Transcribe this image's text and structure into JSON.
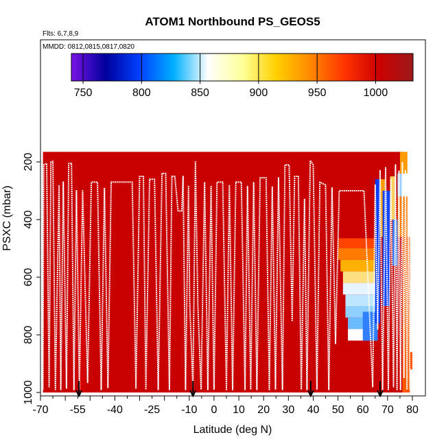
{
  "chart_data": {
    "type": "heatmap",
    "title": "ATOM1 Northbound PS_GEOS5",
    "annotation_flights": "Flts: 6,7,8,9",
    "annotation_dates": "MMDD: 0812,0815,0817,0820",
    "xlabel": "Latitude (deg N)",
    "ylabel": "PSXC (mbar)",
    "xlim": [
      -70,
      82
    ],
    "ylim": [
      1000,
      100
    ],
    "xticks": [
      -70,
      -60,
      -50,
      -40,
      -30,
      -20,
      -10,
      0,
      10,
      20,
      30,
      40,
      50,
      60,
      70,
      80
    ],
    "xtick_labels": [
      "-70",
      "-55",
      "-40",
      "-25",
      "-10",
      "0",
      "10",
      "20",
      "30",
      "40",
      "50",
      "60",
      "70",
      "80"
    ],
    "xtick_label_values": [
      -70,
      -55,
      -40,
      -25,
      -10,
      0,
      10,
      20,
      30,
      40,
      50,
      60,
      70,
      80
    ],
    "yticks": [
      200,
      400,
      600,
      800,
      1000
    ],
    "ytick_labels": [
      "200",
      "400",
      "600",
      "800",
      "1000"
    ],
    "colorbar": {
      "range": [
        740,
        1032
      ],
      "tick_values": [
        750,
        800,
        850,
        900,
        950,
        1000
      ],
      "tick_labels": [
        "750",
        "800",
        "850",
        "900",
        "950",
        "1000"
      ],
      "colors": [
        "#7a14e6",
        "#00009c",
        "#0040ff",
        "#00b0ff",
        "#ffffff",
        "#ffff9a",
        "#ffd000",
        "#ff8800",
        "#ff3300",
        "#cc0000",
        "#9c1a1a"
      ]
    },
    "background_field": {
      "lat_range": [
        -69,
        76
      ],
      "p_range": [
        165,
        1000
      ],
      "color": "#c80000"
    },
    "anomaly_cells": [
      {
        "lat_range": [
          50,
          66
        ],
        "p_range": [
          465,
          500
        ],
        "color": "#ff4400"
      },
      {
        "lat_range": [
          50,
          66
        ],
        "p_range": [
          500,
          540
        ],
        "color": "#ff7a00"
      },
      {
        "lat_range": [
          51,
          66
        ],
        "p_range": [
          540,
          580
        ],
        "color": "#ffb000"
      },
      {
        "lat_range": [
          52,
          66
        ],
        "p_range": [
          580,
          620
        ],
        "color": "#ffe080"
      },
      {
        "lat_range": [
          52,
          66
        ],
        "p_range": [
          620,
          660
        ],
        "color": "#e8f4ff"
      },
      {
        "lat_range": [
          53,
          66
        ],
        "p_range": [
          660,
          700
        ],
        "color": "#bfe6ff"
      },
      {
        "lat_range": [
          53,
          66
        ],
        "p_range": [
          700,
          740
        ],
        "color": "#8fd0ff"
      },
      {
        "lat_range": [
          54,
          66
        ],
        "p_range": [
          740,
          780
        ],
        "color": "#6bbcff"
      },
      {
        "lat_range": [
          54,
          66
        ],
        "p_range": [
          780,
          820
        ],
        "color": "#ffffff"
      },
      {
        "lat_range": [
          60,
          66
        ],
        "p_range": [
          720,
          820
        ],
        "color": "#2f7fff"
      },
      {
        "lat_range": [
          65,
          67
        ],
        "p_range": [
          260,
          760
        ],
        "color": "#0a3cff"
      },
      {
        "lat_range": [
          67,
          69
        ],
        "p_range": [
          260,
          460
        ],
        "color": "#ff9a00"
      },
      {
        "lat_range": [
          68,
          71
        ],
        "p_range": [
          300,
          700
        ],
        "color": "#1144ff"
      },
      {
        "lat_range": [
          71,
          73
        ],
        "p_range": [
          250,
          400
        ],
        "color": "#ffd060"
      },
      {
        "lat_range": [
          72,
          74
        ],
        "p_range": [
          400,
          560
        ],
        "color": "#3377ff"
      },
      {
        "lat_range": [
          74,
          76
        ],
        "p_range": [
          240,
          320
        ],
        "color": "#99ccff"
      },
      {
        "lat_range": [
          74,
          78
        ],
        "p_range": [
          320,
          460
        ],
        "color": "#ff7700"
      },
      {
        "lat_range": [
          75,
          78
        ],
        "p_range": [
          165,
          240
        ],
        "color": "#ff9a00"
      },
      {
        "lat_range": [
          76,
          79
        ],
        "p_range": [
          460,
          1000
        ],
        "color": "#ff5a00"
      },
      {
        "lat_range": [
          78,
          80
        ],
        "p_range": [
          860,
          920
        ],
        "color": "#ff5a00"
      },
      {
        "lat_range": [
          -55,
          -52
        ],
        "p_range": [
          310,
          1000
        ],
        "color": "#d40000"
      }
    ],
    "flight_track": [
      [
        -69,
        990
      ],
      [
        -68.7,
        210
      ],
      [
        -67.5,
        205
      ],
      [
        -66.5,
        980
      ],
      [
        -65.8,
        200
      ],
      [
        -65,
        198
      ],
      [
        -64,
        990
      ],
      [
        -62.5,
        280
      ],
      [
        -61.8,
        990
      ],
      [
        -60.8,
        270
      ],
      [
        -59.5,
        985
      ],
      [
        -58.6,
        205
      ],
      [
        -57.5,
        205
      ],
      [
        -56.5,
        990
      ],
      [
        -55.5,
        300
      ],
      [
        -54.3,
        990
      ],
      [
        -53,
        300
      ],
      [
        -51,
        965
      ],
      [
        -49.5,
        270
      ],
      [
        -47,
        270
      ],
      [
        -45.5,
        990
      ],
      [
        -44.2,
        290
      ],
      [
        -42.8,
        985
      ],
      [
        -41.5,
        270
      ],
      [
        -33,
        270
      ],
      [
        -31.5,
        985
      ],
      [
        -30,
        250
      ],
      [
        -28.5,
        250
      ],
      [
        -27.5,
        990
      ],
      [
        -26,
        260
      ],
      [
        -24,
        260
      ],
      [
        -22.5,
        990
      ],
      [
        -21,
        240
      ],
      [
        -19.5,
        240
      ],
      [
        -18,
        990
      ],
      [
        -17,
        250
      ],
      [
        -15.8,
        250
      ],
      [
        -14.5,
        370
      ],
      [
        -13,
        370
      ],
      [
        -12.5,
        250
      ],
      [
        -11.5,
        990
      ],
      [
        -10.3,
        285
      ],
      [
        -9.8,
        690
      ],
      [
        -8.5,
        985
      ],
      [
        -7.5,
        200
      ],
      [
        -6.5,
        700
      ],
      [
        -5.2,
        990
      ],
      [
        -3.8,
        270
      ],
      [
        -2.5,
        990
      ],
      [
        -1.2,
        285
      ],
      [
        0,
        990
      ],
      [
        1.2,
        270
      ],
      [
        3.5,
        270
      ],
      [
        5,
        990
      ],
      [
        6.2,
        280
      ],
      [
        7.5,
        990
      ],
      [
        8.8,
        270
      ],
      [
        11,
        270
      ],
      [
        12.5,
        990
      ],
      [
        13.5,
        285
      ],
      [
        14.8,
        990
      ],
      [
        16,
        270
      ],
      [
        17.3,
        990
      ],
      [
        18.6,
        255
      ],
      [
        21,
        255
      ],
      [
        22.3,
        990
      ],
      [
        23.5,
        285
      ],
      [
        24.8,
        990
      ],
      [
        26,
        255
      ],
      [
        27.6,
        990
      ],
      [
        28.6,
        210
      ],
      [
        30.3,
        210
      ],
      [
        31.5,
        750
      ],
      [
        32.5,
        250
      ],
      [
        34,
        250
      ],
      [
        35.2,
        990
      ],
      [
        36.5,
        330
      ],
      [
        37.5,
        990
      ],
      [
        38.8,
        195
      ],
      [
        40,
        210
      ],
      [
        41.5,
        990
      ],
      [
        42.7,
        270
      ],
      [
        45,
        280
      ],
      [
        46.3,
        990
      ],
      [
        47.6,
        290
      ],
      [
        49,
        830
      ],
      [
        50.5,
        300
      ],
      [
        59.8,
        300
      ],
      [
        60.5,
        300
      ],
      [
        64,
        980
      ],
      [
        65,
        280
      ],
      [
        66,
        780
      ],
      [
        67,
        230
      ],
      [
        68,
        990
      ],
      [
        69.2,
        220
      ],
      [
        70.3,
        990
      ],
      [
        71.3,
        260
      ],
      [
        72.4,
        980
      ],
      [
        73.2,
        210
      ],
      [
        73.8,
        990
      ],
      [
        74.6,
        230
      ],
      [
        75.2,
        990
      ],
      [
        76,
        200
      ],
      [
        76.6,
        950
      ],
      [
        77.2,
        230
      ],
      [
        77.8,
        990
      ],
      [
        78.4,
        320
      ],
      [
        79,
        990
      ]
    ],
    "arrow_markers_lat": [
      -54.5,
      -8.5,
      39,
      67
    ]
  }
}
